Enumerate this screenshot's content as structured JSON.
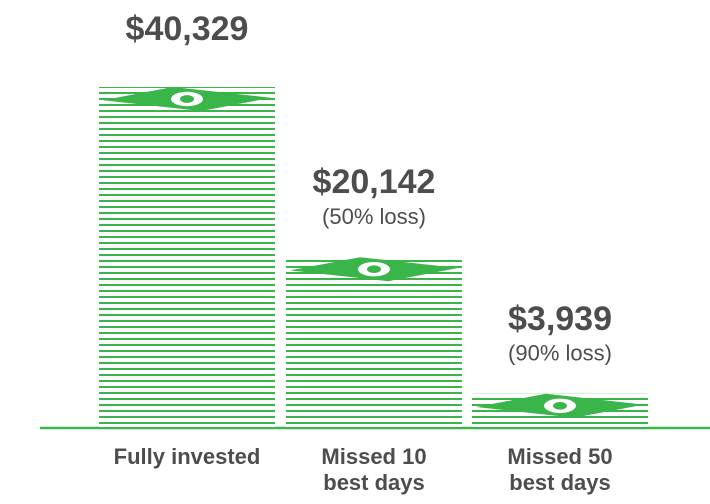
{
  "chart_data": {
    "type": "bar",
    "categories": [
      "Fully invested",
      "Missed 10 best days",
      "Missed 50 best days"
    ],
    "values": [
      40329,
      20142,
      3939
    ],
    "value_labels": [
      "$40,329",
      "$20,142",
      "$3,939"
    ],
    "notes": [
      null,
      "(50% loss)",
      "(90% loss)"
    ],
    "color": "#3ab54a"
  }
}
